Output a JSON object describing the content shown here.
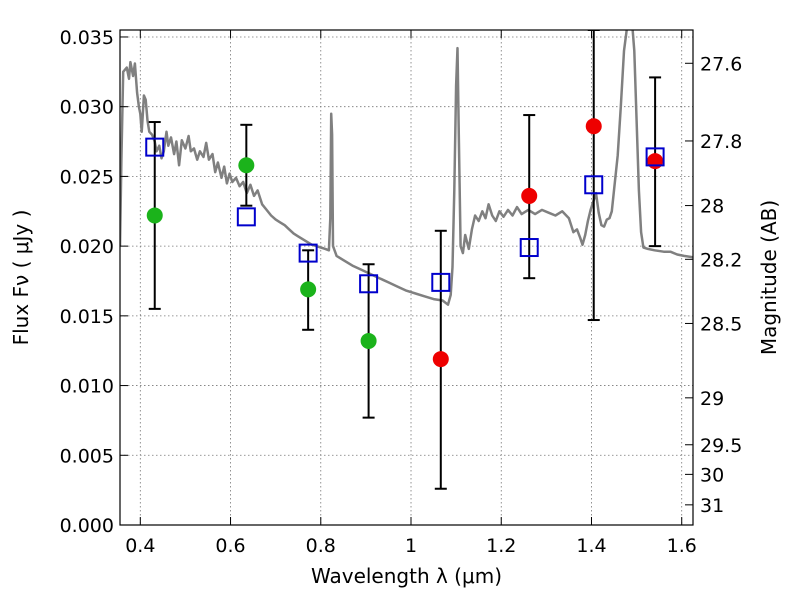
{
  "chart_data": {
    "type": "scatter",
    "xlabel": "Wavelength  λ (μm)",
    "ylabel": "Flux  Fν  ( μJy )",
    "y2label": "Magnitude (AB)",
    "xlim": [
      0.355,
      1.625
    ],
    "ylim": [
      0.0,
      0.0355
    ],
    "grid": true,
    "x_ticks": [
      {
        "value": 0.4,
        "label": "0.4"
      },
      {
        "value": 0.6,
        "label": "0.6"
      },
      {
        "value": 0.8,
        "label": "0.8"
      },
      {
        "value": 1.0,
        "label": "1"
      },
      {
        "value": 1.2,
        "label": "1.2"
      },
      {
        "value": 1.4,
        "label": "1.4"
      },
      {
        "value": 1.6,
        "label": "1.6"
      }
    ],
    "y_ticks": [
      {
        "value": 0.0,
        "label": "0.000"
      },
      {
        "value": 0.005,
        "label": "0.005"
      },
      {
        "value": 0.01,
        "label": "0.010"
      },
      {
        "value": 0.015,
        "label": "0.015"
      },
      {
        "value": 0.02,
        "label": "0.020"
      },
      {
        "value": 0.025,
        "label": "0.025"
      },
      {
        "value": 0.03,
        "label": "0.030"
      },
      {
        "value": 0.035,
        "label": "0.035"
      }
    ],
    "y2_ticks": [
      {
        "value": 27.6,
        "label": "27.6"
      },
      {
        "value": 27.8,
        "label": "27.8"
      },
      {
        "value": 28.0,
        "label": "28"
      },
      {
        "value": 28.2,
        "label": "28.2"
      },
      {
        "value": 28.5,
        "label": "28.5"
      },
      {
        "value": 29.0,
        "label": "29"
      },
      {
        "value": 29.5,
        "label": "29.5"
      },
      {
        "value": 30.0,
        "label": "30"
      },
      {
        "value": 31.0,
        "label": "31"
      }
    ],
    "colors": {
      "model_line": "#808080",
      "model_points": "#0000cc",
      "obs_green": "#1bb31b",
      "obs_red": "#ee0000",
      "errorbar": "#000000",
      "grid": "#777777"
    },
    "errorbars": [
      {
        "x": 0.432,
        "low": 0.0155,
        "high": 0.0289
      },
      {
        "x": 0.635,
        "low": 0.0229,
        "high": 0.0287
      },
      {
        "x": 0.772,
        "low": 0.014,
        "high": 0.0197
      },
      {
        "x": 0.906,
        "low": 0.0077,
        "high": 0.0187
      },
      {
        "x": 1.066,
        "low": 0.0026,
        "high": 0.0211
      },
      {
        "x": 1.262,
        "low": 0.0177,
        "high": 0.0294
      },
      {
        "x": 1.405,
        "low": 0.0147,
        "high": 0.0355
      },
      {
        "x": 1.541,
        "low": 0.02,
        "high": 0.0321
      }
    ],
    "observed_points": [
      {
        "x": 0.432,
        "y": 0.0222,
        "color": "green"
      },
      {
        "x": 0.635,
        "y": 0.0258,
        "color": "green"
      },
      {
        "x": 0.772,
        "y": 0.0169,
        "color": "green"
      },
      {
        "x": 0.906,
        "y": 0.0132,
        "color": "green"
      },
      {
        "x": 1.066,
        "y": 0.0119,
        "color": "red"
      },
      {
        "x": 1.262,
        "y": 0.0236,
        "color": "red"
      },
      {
        "x": 1.405,
        "y": 0.0286,
        "color": "red"
      },
      {
        "x": 1.541,
        "y": 0.0261,
        "color": "red"
      }
    ],
    "model_points": [
      {
        "x": 0.432,
        "y": 0.0271
      },
      {
        "x": 0.635,
        "y": 0.0221
      },
      {
        "x": 0.772,
        "y": 0.0195
      },
      {
        "x": 0.906,
        "y": 0.0173
      },
      {
        "x": 1.066,
        "y": 0.0174
      },
      {
        "x": 1.262,
        "y": 0.0199
      },
      {
        "x": 1.405,
        "y": 0.0244
      },
      {
        "x": 1.541,
        "y": 0.0264
      }
    ],
    "model_spectrum": [
      [
        0.355,
        0.02
      ],
      [
        0.358,
        0.0262
      ],
      [
        0.362,
        0.0325
      ],
      [
        0.37,
        0.0328
      ],
      [
        0.375,
        0.032
      ],
      [
        0.378,
        0.0332
      ],
      [
        0.384,
        0.0322
      ],
      [
        0.388,
        0.0331
      ],
      [
        0.393,
        0.031
      ],
      [
        0.397,
        0.03
      ],
      [
        0.4,
        0.0295
      ],
      [
        0.403,
        0.0282
      ],
      [
        0.405,
        0.0292
      ],
      [
        0.408,
        0.0308
      ],
      [
        0.412,
        0.0305
      ],
      [
        0.416,
        0.029
      ],
      [
        0.42,
        0.0282
      ],
      [
        0.426,
        0.028
      ],
      [
        0.432,
        0.0275
      ],
      [
        0.436,
        0.0268
      ],
      [
        0.442,
        0.0272
      ],
      [
        0.447,
        0.0263
      ],
      [
        0.452,
        0.0268
      ],
      [
        0.458,
        0.0282
      ],
      [
        0.462,
        0.0272
      ],
      [
        0.468,
        0.0278
      ],
      [
        0.475,
        0.0266
      ],
      [
        0.48,
        0.0275
      ],
      [
        0.486,
        0.0258
      ],
      [
        0.492,
        0.0276
      ],
      [
        0.5,
        0.027
      ],
      [
        0.507,
        0.0279
      ],
      [
        0.512,
        0.0268
      ],
      [
        0.519,
        0.027
      ],
      [
        0.526,
        0.0262
      ],
      [
        0.532,
        0.0268
      ],
      [
        0.54,
        0.0264
      ],
      [
        0.546,
        0.0274
      ],
      [
        0.552,
        0.0262
      ],
      [
        0.56,
        0.0266
      ],
      [
        0.566,
        0.0253
      ],
      [
        0.572,
        0.026
      ],
      [
        0.58,
        0.0249
      ],
      [
        0.586,
        0.0257
      ],
      [
        0.592,
        0.0245
      ],
      [
        0.598,
        0.0252
      ],
      [
        0.604,
        0.0246
      ],
      [
        0.612,
        0.0249
      ],
      [
        0.62,
        0.0243
      ],
      [
        0.628,
        0.0246
      ],
      [
        0.636,
        0.0238
      ],
      [
        0.644,
        0.0244
      ],
      [
        0.652,
        0.0236
      ],
      [
        0.66,
        0.024
      ],
      [
        0.67,
        0.023
      ],
      [
        0.68,
        0.0226
      ],
      [
        0.69,
        0.0222
      ],
      [
        0.7,
        0.0219
      ],
      [
        0.71,
        0.0217
      ],
      [
        0.72,
        0.0215
      ],
      [
        0.73,
        0.0212
      ],
      [
        0.74,
        0.0209
      ],
      [
        0.75,
        0.0207
      ],
      [
        0.76,
        0.0205
      ],
      [
        0.77,
        0.0203
      ],
      [
        0.78,
        0.0201
      ],
      [
        0.79,
        0.02
      ],
      [
        0.8,
        0.0199
      ],
      [
        0.81,
        0.0198
      ],
      [
        0.818,
        0.0197
      ],
      [
        0.821,
        0.022
      ],
      [
        0.823,
        0.0295
      ],
      [
        0.825,
        0.028
      ],
      [
        0.827,
        0.02
      ],
      [
        0.835,
        0.0193
      ],
      [
        0.85,
        0.019
      ],
      [
        0.87,
        0.0186
      ],
      [
        0.89,
        0.0183
      ],
      [
        0.91,
        0.018
      ],
      [
        0.93,
        0.0177
      ],
      [
        0.95,
        0.0174
      ],
      [
        0.97,
        0.0171
      ],
      [
        0.99,
        0.0168
      ],
      [
        1.01,
        0.0166
      ],
      [
        1.03,
        0.0164
      ],
      [
        1.05,
        0.0162
      ],
      [
        1.07,
        0.0161
      ],
      [
        1.082,
        0.0158
      ],
      [
        1.088,
        0.0165
      ],
      [
        1.092,
        0.0185
      ],
      [
        1.096,
        0.024
      ],
      [
        1.1,
        0.0315
      ],
      [
        1.103,
        0.0342
      ],
      [
        1.106,
        0.028
      ],
      [
        1.11,
        0.02
      ],
      [
        1.115,
        0.0195
      ],
      [
        1.12,
        0.0208
      ],
      [
        1.128,
        0.0198
      ],
      [
        1.135,
        0.0212
      ],
      [
        1.142,
        0.0222
      ],
      [
        1.15,
        0.0218
      ],
      [
        1.158,
        0.0225
      ],
      [
        1.165,
        0.022
      ],
      [
        1.172,
        0.023
      ],
      [
        1.18,
        0.0222
      ],
      [
        1.188,
        0.0218
      ],
      [
        1.196,
        0.0225
      ],
      [
        1.205,
        0.0221
      ],
      [
        1.215,
        0.0226
      ],
      [
        1.225,
        0.0222
      ],
      [
        1.235,
        0.0228
      ],
      [
        1.245,
        0.0223
      ],
      [
        1.26,
        0.0226
      ],
      [
        1.275,
        0.0223
      ],
      [
        1.29,
        0.0226
      ],
      [
        1.305,
        0.0224
      ],
      [
        1.32,
        0.0222
      ],
      [
        1.335,
        0.0225
      ],
      [
        1.35,
        0.022
      ],
      [
        1.36,
        0.021
      ],
      [
        1.368,
        0.0212
      ],
      [
        1.375,
        0.0206
      ],
      [
        1.38,
        0.0201
      ],
      [
        1.386,
        0.0208
      ],
      [
        1.392,
        0.0218
      ],
      [
        1.398,
        0.0226
      ],
      [
        1.404,
        0.0232
      ],
      [
        1.41,
        0.0238
      ],
      [
        1.416,
        0.0224
      ],
      [
        1.422,
        0.0215
      ],
      [
        1.428,
        0.0214
      ],
      [
        1.434,
        0.0219
      ],
      [
        1.44,
        0.022
      ],
      [
        1.445,
        0.0225
      ],
      [
        1.45,
        0.024
      ],
      [
        1.458,
        0.0265
      ],
      [
        1.465,
        0.03
      ],
      [
        1.472,
        0.034
      ],
      [
        1.48,
        0.036
      ],
      [
        1.49,
        0.036
      ],
      [
        1.495,
        0.034
      ],
      [
        1.5,
        0.029
      ],
      [
        1.505,
        0.024
      ],
      [
        1.51,
        0.021
      ],
      [
        1.515,
        0.0199
      ],
      [
        1.525,
        0.0198
      ],
      [
        1.54,
        0.0197
      ],
      [
        1.56,
        0.0196
      ],
      [
        1.575,
        0.0196
      ],
      [
        1.59,
        0.0194
      ],
      [
        1.605,
        0.0193
      ],
      [
        1.625,
        0.0192
      ]
    ]
  }
}
